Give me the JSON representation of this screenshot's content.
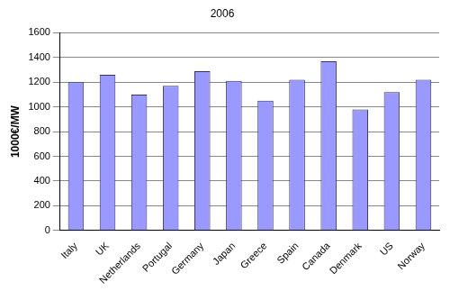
{
  "chart_data": {
    "type": "bar",
    "title": "2006",
    "y_label": "1000€/MW",
    "categories": [
      "Italy",
      "UK",
      "Netherlands",
      "Portugal",
      "Germany",
      "Japan",
      "Greece",
      "Spain",
      "Canada",
      "Denmark",
      "US",
      "Norway"
    ],
    "values": [
      1200,
      1260,
      1100,
      1170,
      1290,
      1210,
      1050,
      1220,
      1370,
      980,
      1120,
      1220
    ],
    "color": "#9999ff",
    "ylim": [
      0,
      1600
    ],
    "yticks": [
      0,
      200,
      400,
      600,
      800,
      1000,
      1200,
      1400,
      1600
    ],
    "grid": true
  }
}
